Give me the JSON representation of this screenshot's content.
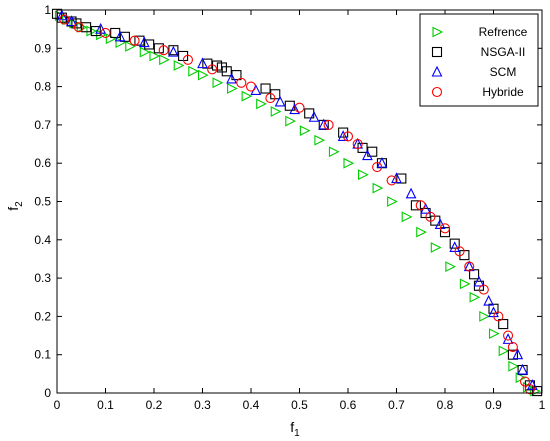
{
  "chart_data": {
    "type": "scatter",
    "xlabel": "f",
    "xlabel_sub": "1",
    "ylabel": "f",
    "ylabel_sub": "2",
    "xlim": [
      0,
      1
    ],
    "ylim": [
      0,
      1
    ],
    "xticks": [
      0,
      0.1,
      0.2,
      0.3,
      0.4,
      0.5,
      0.6,
      0.7,
      0.8,
      0.9,
      1
    ],
    "yticks": [
      0,
      0.1,
      0.2,
      0.3,
      0.4,
      0.5,
      0.6,
      0.7,
      0.8,
      0.9,
      1
    ],
    "xtick_labels": [
      "0",
      "0.1",
      "0.2",
      "0.3",
      "0.4",
      "0.5",
      "0.6",
      "0.7",
      "0.8",
      "0.9",
      "1"
    ],
    "ytick_labels": [
      "0",
      "0.1",
      "0.2",
      "0.3",
      "0.4",
      "0.5",
      "0.6",
      "0.7",
      "0.8",
      "0.9",
      "1"
    ],
    "grid": false,
    "legend_position": "top-right",
    "series": [
      {
        "name": "Refrence",
        "marker": "triangle-right",
        "color": "#00cc00",
        "x": [
          0.005,
          0.02,
          0.035,
          0.05,
          0.07,
          0.09,
          0.11,
          0.13,
          0.15,
          0.18,
          0.2,
          0.22,
          0.25,
          0.28,
          0.3,
          0.33,
          0.36,
          0.39,
          0.42,
          0.45,
          0.48,
          0.51,
          0.54,
          0.57,
          0.6,
          0.63,
          0.66,
          0.69,
          0.72,
          0.75,
          0.78,
          0.81,
          0.84,
          0.86,
          0.88,
          0.9,
          0.92,
          0.94,
          0.955,
          0.97,
          0.985
        ],
        "y": [
          0.985,
          0.975,
          0.965,
          0.955,
          0.945,
          0.935,
          0.925,
          0.915,
          0.905,
          0.89,
          0.88,
          0.87,
          0.855,
          0.84,
          0.83,
          0.81,
          0.795,
          0.775,
          0.755,
          0.735,
          0.71,
          0.685,
          0.66,
          0.63,
          0.6,
          0.57,
          0.535,
          0.5,
          0.46,
          0.42,
          0.38,
          0.33,
          0.285,
          0.25,
          0.2,
          0.155,
          0.11,
          0.07,
          0.04,
          0.015,
          0.005
        ]
      },
      {
        "name": "NSGA-II",
        "marker": "square",
        "color": "#000000",
        "x": [
          0.0,
          0.01,
          0.03,
          0.04,
          0.06,
          0.08,
          0.12,
          0.14,
          0.17,
          0.19,
          0.21,
          0.24,
          0.26,
          0.31,
          0.33,
          0.34,
          0.35,
          0.37,
          0.43,
          0.45,
          0.48,
          0.52,
          0.55,
          0.59,
          0.63,
          0.65,
          0.67,
          0.71,
          0.74,
          0.76,
          0.78,
          0.8,
          0.82,
          0.84,
          0.86,
          0.87,
          0.9,
          0.92,
          0.94,
          0.96,
          0.975,
          0.99
        ],
        "y": [
          0.99,
          0.98,
          0.97,
          0.965,
          0.955,
          0.945,
          0.94,
          0.93,
          0.92,
          0.91,
          0.9,
          0.895,
          0.88,
          0.86,
          0.855,
          0.85,
          0.84,
          0.83,
          0.795,
          0.78,
          0.75,
          0.73,
          0.7,
          0.68,
          0.64,
          0.63,
          0.6,
          0.56,
          0.49,
          0.47,
          0.45,
          0.42,
          0.39,
          0.36,
          0.31,
          0.28,
          0.22,
          0.18,
          0.1,
          0.06,
          0.02,
          0.005
        ]
      },
      {
        "name": "SCM",
        "marker": "triangle-up",
        "color": "#0000ff",
        "x": [
          0.01,
          0.03,
          0.09,
          0.13,
          0.18,
          0.24,
          0.3,
          0.36,
          0.41,
          0.46,
          0.49,
          0.53,
          0.55,
          0.59,
          0.62,
          0.64,
          0.67,
          0.7,
          0.73,
          0.76,
          0.79,
          0.82,
          0.85,
          0.87,
          0.89,
          0.9,
          0.93,
          0.95,
          0.96,
          0.98
        ],
        "y": [
          0.985,
          0.97,
          0.95,
          0.93,
          0.915,
          0.89,
          0.86,
          0.82,
          0.79,
          0.76,
          0.74,
          0.72,
          0.7,
          0.67,
          0.65,
          0.62,
          0.6,
          0.56,
          0.52,
          0.48,
          0.44,
          0.38,
          0.33,
          0.29,
          0.24,
          0.21,
          0.14,
          0.1,
          0.06,
          0.02
        ]
      },
      {
        "name": "Hybride",
        "marker": "circle",
        "color": "#ff0000",
        "x": [
          0.015,
          0.045,
          0.1,
          0.16,
          0.22,
          0.27,
          0.32,
          0.38,
          0.4,
          0.44,
          0.5,
          0.56,
          0.6,
          0.62,
          0.66,
          0.69,
          0.75,
          0.77,
          0.8,
          0.83,
          0.85,
          0.88,
          0.91,
          0.93,
          0.94,
          0.965,
          0.975
        ],
        "y": [
          0.975,
          0.955,
          0.94,
          0.92,
          0.895,
          0.87,
          0.845,
          0.81,
          0.8,
          0.77,
          0.745,
          0.7,
          0.67,
          0.65,
          0.59,
          0.555,
          0.49,
          0.46,
          0.43,
          0.37,
          0.33,
          0.27,
          0.2,
          0.15,
          0.12,
          0.03,
          0.01
        ]
      }
    ]
  }
}
